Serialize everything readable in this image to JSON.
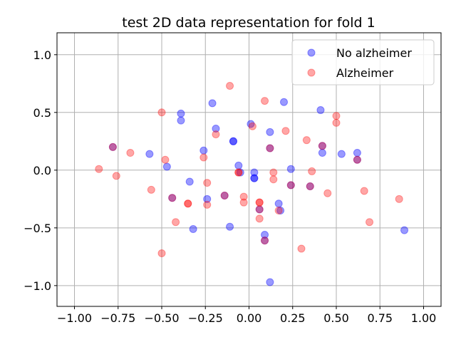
{
  "chart_data": {
    "type": "scatter",
    "title": "test 2D data representation for fold 1",
    "xlabel": "",
    "ylabel": "",
    "xlim": [
      -1.1,
      1.1
    ],
    "ylim": [
      -1.18,
      1.19
    ],
    "xticks": [
      -1.0,
      -0.75,
      -0.5,
      -0.25,
      0.0,
      0.25,
      0.5,
      0.75,
      1.0
    ],
    "xtick_labels": [
      "−1.00",
      "−0.75",
      "−0.50",
      "−0.25",
      "0.00",
      "0.25",
      "0.50",
      "0.75",
      "1.00"
    ],
    "yticks": [
      -1.0,
      -0.5,
      0.0,
      0.5,
      1.0
    ],
    "ytick_labels": [
      "−1.0",
      "−0.5",
      "0.0",
      "0.5",
      "1.0"
    ],
    "grid": true,
    "legend_position": "top-right",
    "series": [
      {
        "name": "No alzheimer",
        "color": "#0000ff",
        "alpha": 0.4,
        "points": [
          [
            -0.57,
            0.14
          ],
          [
            -0.47,
            0.03
          ],
          [
            -0.39,
            0.49
          ],
          [
            -0.39,
            0.43
          ],
          [
            -0.34,
            -0.1
          ],
          [
            -0.32,
            -0.51
          ],
          [
            -0.26,
            0.17
          ],
          [
            -0.24,
            -0.25
          ],
          [
            -0.21,
            0.58
          ],
          [
            -0.19,
            0.36
          ],
          [
            -0.11,
            -0.49
          ],
          [
            -0.09,
            0.25
          ],
          [
            -0.09,
            0.25
          ],
          [
            -0.06,
            0.04
          ],
          [
            -0.14,
            -0.22
          ],
          [
            -0.05,
            -0.02
          ],
          [
            0.01,
            0.4
          ],
          [
            0.03,
            -0.02
          ],
          [
            0.03,
            -0.07
          ],
          [
            0.03,
            -0.07
          ],
          [
            0.09,
            -0.56
          ],
          [
            0.09,
            -0.61
          ],
          [
            0.12,
            0.19
          ],
          [
            0.12,
            0.33
          ],
          [
            0.12,
            -0.97
          ],
          [
            0.17,
            -0.29
          ],
          [
            0.18,
            -0.35
          ],
          [
            0.2,
            0.59
          ],
          [
            0.24,
            0.01
          ],
          [
            0.24,
            -0.13
          ],
          [
            0.35,
            -0.14
          ],
          [
            0.41,
            0.52
          ],
          [
            0.42,
            0.15
          ],
          [
            0.42,
            0.21
          ],
          [
            0.53,
            0.14
          ],
          [
            0.62,
            0.15
          ],
          [
            0.62,
            0.09
          ],
          [
            0.89,
            -0.52
          ],
          [
            -0.44,
            -0.24
          ],
          [
            -0.78,
            0.2
          ],
          [
            0.06,
            -0.34
          ]
        ]
      },
      {
        "name": "Alzheimer",
        "color": "#ff0000",
        "alpha": 0.35,
        "points": [
          [
            -0.86,
            0.01
          ],
          [
            -0.78,
            0.2
          ],
          [
            -0.76,
            -0.05
          ],
          [
            -0.68,
            0.15
          ],
          [
            -0.56,
            -0.17
          ],
          [
            -0.5,
            0.5
          ],
          [
            -0.5,
            -0.72
          ],
          [
            -0.48,
            0.09
          ],
          [
            -0.44,
            -0.24
          ],
          [
            -0.42,
            -0.45
          ],
          [
            -0.35,
            -0.29
          ],
          [
            -0.35,
            -0.29
          ],
          [
            -0.26,
            0.11
          ],
          [
            -0.24,
            -0.11
          ],
          [
            -0.24,
            -0.3
          ],
          [
            -0.19,
            0.31
          ],
          [
            -0.14,
            -0.22
          ],
          [
            -0.11,
            0.73
          ],
          [
            -0.06,
            -0.02
          ],
          [
            -0.06,
            -0.02
          ],
          [
            -0.03,
            -0.23
          ],
          [
            -0.03,
            -0.28
          ],
          [
            0.02,
            0.38
          ],
          [
            0.06,
            -0.28
          ],
          [
            0.06,
            -0.28
          ],
          [
            0.06,
            -0.34
          ],
          [
            0.06,
            -0.42
          ],
          [
            0.09,
            0.6
          ],
          [
            0.09,
            -0.61
          ],
          [
            0.12,
            0.19
          ],
          [
            0.14,
            -0.02
          ],
          [
            0.14,
            -0.08
          ],
          [
            0.17,
            -0.35
          ],
          [
            0.21,
            0.34
          ],
          [
            0.24,
            -0.13
          ],
          [
            0.3,
            -0.68
          ],
          [
            0.33,
            0.26
          ],
          [
            0.36,
            -0.01
          ],
          [
            0.35,
            -0.14
          ],
          [
            0.42,
            0.21
          ],
          [
            0.45,
            -0.2
          ],
          [
            0.5,
            0.47
          ],
          [
            0.5,
            0.41
          ],
          [
            0.62,
            0.09
          ],
          [
            0.66,
            -0.18
          ],
          [
            0.69,
            -0.45
          ],
          [
            0.86,
            -0.25
          ]
        ]
      }
    ]
  }
}
